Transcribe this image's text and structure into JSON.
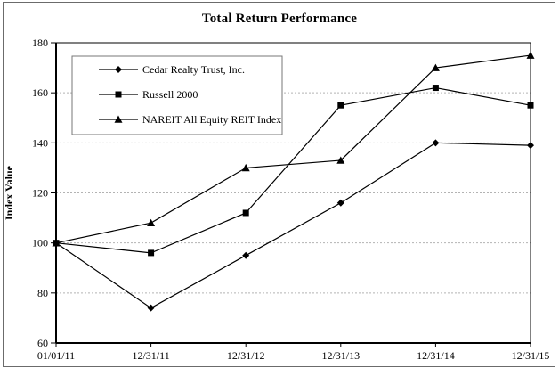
{
  "chart_data": {
    "type": "line",
    "title": "Total Return Performance",
    "xlabel": "",
    "ylabel": "Index Value",
    "ylim": [
      60,
      180
    ],
    "yticks": [
      60,
      80,
      100,
      120,
      140,
      160,
      180
    ],
    "grid": "horizontal-dashed",
    "legend_position": "top-left-inside",
    "categories": [
      "01/01/11",
      "12/31/11",
      "12/31/12",
      "12/31/13",
      "12/31/14",
      "12/31/15"
    ],
    "series": [
      {
        "name": "Cedar Realty Trust, Inc.",
        "marker": "diamond",
        "color": "#000000",
        "values": [
          100,
          74,
          95,
          116,
          140,
          139
        ]
      },
      {
        "name": "Russell 2000",
        "marker": "square",
        "color": "#000000",
        "values": [
          100,
          96,
          112,
          155,
          162,
          155
        ]
      },
      {
        "name": "NAREIT All Equity REIT Index",
        "marker": "triangle",
        "color": "#000000",
        "values": [
          100,
          108,
          130,
          133,
          170,
          175
        ]
      }
    ]
  },
  "colors": {
    "line": "#000000",
    "text": "#000000",
    "gridline": "#b3b3b3",
    "legend_border": "#777777",
    "frame_border": "#6b6b6b",
    "background": "#ffffff"
  }
}
